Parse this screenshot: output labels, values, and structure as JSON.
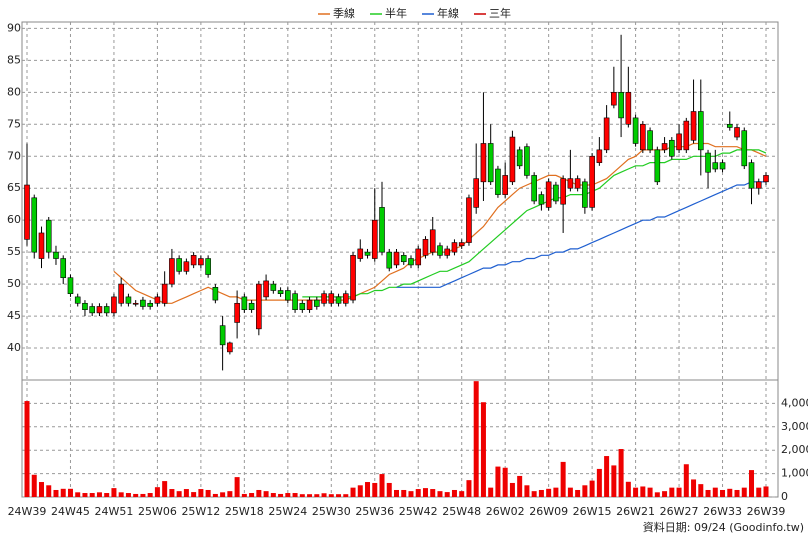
{
  "chart_data": {
    "type": "candlestick",
    "categories": [
      "24W39",
      null,
      null,
      null,
      null,
      null,
      "24W45",
      null,
      null,
      null,
      null,
      null,
      "24W51",
      null,
      null,
      null,
      null,
      null,
      "25W06",
      null,
      null,
      null,
      null,
      null,
      "25W12",
      null,
      null,
      null,
      null,
      null,
      "25W18",
      null,
      null,
      null,
      null,
      null,
      "25W24",
      null,
      null,
      null,
      null,
      null,
      "25W30",
      null,
      null,
      null,
      null,
      null,
      "25W36",
      null,
      null,
      null,
      null,
      null,
      "25W42",
      null,
      null,
      null,
      null,
      null,
      "25W48",
      null,
      null,
      null,
      null,
      null,
      "26W02",
      null,
      null,
      null,
      null,
      null,
      "26W09",
      null,
      null,
      null,
      null,
      null,
      "26W15",
      null,
      null,
      null,
      null,
      null,
      "26W21",
      null,
      null,
      null,
      null,
      null,
      "26W27",
      null,
      null,
      null,
      null,
      null,
      "26W33",
      null,
      null,
      null,
      null,
      null,
      "26W39"
    ],
    "open": [
      57,
      63.5,
      54,
      60,
      55,
      54,
      51,
      48,
      47,
      46.5,
      45.5,
      46.5,
      45.5,
      47,
      48,
      47,
      47.5,
      47,
      47,
      47,
      50,
      54,
      52,
      53,
      53,
      54,
      49.5,
      43.5,
      39.4,
      44,
      48,
      47,
      43,
      48,
      50,
      49,
      49,
      48.5,
      47,
      46,
      47.5,
      47,
      47,
      48,
      47,
      47.5,
      54,
      55,
      54,
      62,
      55,
      53,
      54.5,
      54,
      53,
      54.5,
      55,
      56,
      54.5,
      55,
      56,
      56.5,
      62,
      66,
      72,
      68,
      64,
      66,
      71,
      71.5,
      67,
      64,
      62,
      65.5,
      62.5,
      65,
      65,
      66,
      62,
      69,
      71,
      78,
      80,
      75,
      76,
      71,
      74,
      71,
      71,
      72.5,
      71,
      71,
      72.5,
      77,
      70.5,
      69,
      69,
      75,
      73,
      74,
      69,
      65,
      66
    ],
    "high": [
      72,
      64,
      59,
      60.5,
      56,
      54.5,
      51.5,
      48.5,
      47.5,
      47,
      47,
      47,
      48.5,
      51,
      48.5,
      47.5,
      48,
      47.5,
      48.5,
      52,
      55.5,
      54.5,
      54,
      55,
      54.5,
      54.5,
      50,
      45,
      41,
      49,
      48.5,
      47.5,
      50.5,
      51.5,
      50.5,
      49.5,
      49.5,
      49,
      47.5,
      48,
      48,
      49,
      49,
      48.5,
      49,
      55,
      57,
      55.5,
      65,
      66,
      55.5,
      55.5,
      55,
      54.5,
      56,
      57.5,
      60.5,
      56.5,
      56,
      57,
      57,
      64,
      72,
      80,
      75,
      68.5,
      69,
      74,
      71.5,
      72,
      67.5,
      64.5,
      66.5,
      66,
      67,
      71,
      67,
      66.5,
      70.5,
      73,
      78,
      84,
      89,
      84,
      76.5,
      75.5,
      74.5,
      71.5,
      73,
      73,
      75,
      76,
      82,
      82,
      71,
      71,
      69.5,
      77,
      75,
      74.5,
      69.5,
      66.5,
      67.5
    ],
    "low": [
      56,
      54,
      52.5,
      54,
      53,
      50,
      48,
      46.5,
      45,
      45,
      45,
      45,
      45,
      46.5,
      46.5,
      46.5,
      46,
      46,
      46.5,
      46.5,
      49.5,
      51.5,
      51.5,
      52.5,
      52.5,
      51,
      47,
      36.5,
      39,
      41.5,
      45.5,
      45.5,
      42,
      47.5,
      48.5,
      48,
      47,
      45.5,
      45.5,
      45.5,
      46,
      46.5,
      46.5,
      46.5,
      46.5,
      47,
      53.5,
      54,
      53.5,
      54.5,
      52,
      52.5,
      53,
      52.5,
      52.5,
      54,
      54.5,
      54,
      54,
      54.5,
      55.5,
      56,
      61,
      63,
      65.5,
      63.5,
      63.5,
      65.5,
      68,
      66.5,
      62.5,
      61.5,
      61.5,
      62.5,
      58,
      64.5,
      64.5,
      61,
      61.5,
      68.5,
      70.5,
      77.5,
      73,
      74.5,
      71.5,
      70.5,
      70.5,
      65.5,
      70.5,
      69.5,
      70.5,
      70.5,
      72,
      67,
      65,
      67.5,
      67.5,
      74,
      72.5,
      68,
      62.5,
      64,
      65.5
    ],
    "close": [
      65.5,
      55,
      58,
      55,
      54,
      51,
      48.5,
      47,
      46,
      45.5,
      46.5,
      45.5,
      48,
      50,
      47,
      47,
      46.5,
      46.5,
      48,
      50,
      54,
      52,
      53.5,
      54.5,
      54,
      51.5,
      47.5,
      40.5,
      40.8,
      47,
      46,
      46,
      50,
      50.5,
      49,
      48.5,
      47.5,
      46,
      46,
      47.5,
      46.5,
      48.5,
      48.5,
      47,
      48.5,
      54.5,
      55.5,
      54.5,
      60,
      55,
      52.5,
      55,
      53.5,
      53,
      55.5,
      57,
      58.5,
      54.5,
      55.5,
      56.5,
      56.5,
      63.5,
      66.5,
      72,
      66,
      64,
      67,
      73,
      68.5,
      67,
      63,
      62.5,
      66,
      63,
      66.5,
      66.5,
      66.5,
      62,
      70,
      71,
      76,
      80,
      76,
      80,
      72,
      75,
      71,
      66,
      72,
      70,
      73.5,
      75.5,
      77,
      71,
      67.5,
      68,
      68,
      74.5,
      74.5,
      68.5,
      65,
      66,
      67
    ],
    "up_color": "#ff0000",
    "down_color": "#00cc00",
    "ylim": [
      35,
      91
    ],
    "yticks": [
      40,
      45,
      50,
      55,
      60,
      65,
      70,
      75,
      80,
      85,
      90
    ],
    "grid": true,
    "series": [
      {
        "name": "季線",
        "color": "#e07020",
        "values": [
          null,
          null,
          null,
          null,
          null,
          null,
          null,
          null,
          null,
          null,
          null,
          null,
          52,
          51,
          50,
          49,
          48.5,
          48,
          47.5,
          47,
          47,
          47.5,
          48,
          48.5,
          49,
          49.5,
          49,
          48.5,
          48,
          48,
          47.5,
          47.5,
          47.5,
          47.5,
          47.5,
          47.5,
          47.5,
          47.5,
          47.5,
          47.5,
          47.5,
          47.5,
          47.5,
          47.5,
          47.5,
          48,
          48.5,
          49,
          49.5,
          50.5,
          51.5,
          52,
          52.5,
          53.5,
          54,
          54.5,
          55,
          55,
          55,
          55.5,
          56,
          57,
          58,
          59,
          60.5,
          62,
          63,
          64,
          65,
          65.5,
          66,
          66.5,
          67,
          67,
          66.5,
          66,
          65.5,
          65.5,
          65.5,
          66,
          66.5,
          67.5,
          68.5,
          69.5,
          70,
          71,
          71,
          71,
          71,
          71.5,
          71.5,
          71.5,
          72,
          72,
          72,
          71.5,
          71.5,
          71.5,
          71.5,
          71,
          71,
          70.5,
          70
        ]
      },
      {
        "name": "半年",
        "color": "#22cc22",
        "values": [
          null,
          null,
          null,
          null,
          null,
          null,
          null,
          null,
          null,
          null,
          null,
          null,
          null,
          null,
          null,
          null,
          null,
          null,
          null,
          null,
          null,
          null,
          null,
          null,
          null,
          null,
          null,
          null,
          null,
          null,
          null,
          null,
          null,
          null,
          null,
          null,
          null,
          null,
          48,
          48,
          48,
          48,
          48,
          48,
          48,
          48,
          48.5,
          48.5,
          49,
          49,
          49.5,
          49.5,
          50,
          50,
          50.5,
          51,
          51.5,
          52,
          52,
          52.5,
          53,
          53.5,
          54.5,
          55.5,
          56.5,
          57.5,
          58.5,
          59.5,
          60.5,
          61.5,
          62,
          62.5,
          63,
          63.5,
          63.5,
          64,
          64,
          64,
          64.5,
          65,
          66,
          67,
          67.5,
          68,
          68.5,
          68.5,
          69,
          69,
          69,
          69.5,
          69.5,
          69.5,
          70,
          70,
          70,
          70,
          70.5,
          70.5,
          71,
          71,
          71,
          71,
          70.5
        ]
      },
      {
        "name": "年線",
        "color": "#1f5fd0",
        "values": [
          null,
          null,
          null,
          null,
          null,
          null,
          null,
          null,
          null,
          null,
          null,
          null,
          null,
          null,
          null,
          null,
          null,
          null,
          null,
          null,
          null,
          null,
          null,
          null,
          null,
          null,
          null,
          null,
          null,
          null,
          null,
          null,
          null,
          null,
          null,
          null,
          null,
          null,
          null,
          null,
          null,
          null,
          null,
          null,
          null,
          null,
          null,
          null,
          null,
          null,
          null,
          49.5,
          49.5,
          49.5,
          49.5,
          49.5,
          49.5,
          49.5,
          50,
          50.5,
          51,
          51.5,
          52,
          52.5,
          52.5,
          53,
          53,
          53.5,
          53.5,
          54,
          54,
          54.5,
          54.5,
          55,
          55,
          55.5,
          55.5,
          56,
          56.5,
          57,
          57.5,
          58,
          58.5,
          59,
          59.5,
          60,
          60,
          60.5,
          60.5,
          61,
          61.5,
          62,
          62.5,
          63,
          63.5,
          64,
          64.5,
          65,
          65.5,
          65.5,
          66,
          66,
          66
        ]
      },
      {
        "name": "三年",
        "color": "#cc0000",
        "values": [
          null,
          null,
          null,
          null,
          null,
          null,
          null,
          null,
          null,
          null,
          null,
          null,
          null,
          null,
          null,
          null,
          null,
          null,
          null,
          null,
          null,
          null,
          null,
          null,
          null,
          null,
          null,
          null,
          null,
          null,
          null,
          null,
          null,
          null,
          null,
          null,
          null,
          null,
          null,
          null,
          null,
          null,
          null,
          null,
          null,
          null,
          null,
          null,
          null,
          null,
          null,
          null,
          null,
          null,
          null,
          null,
          null,
          null,
          null,
          null,
          null,
          null,
          null,
          null,
          null,
          null,
          null,
          null,
          null,
          null,
          null,
          null,
          null,
          null,
          null,
          null,
          null,
          null,
          null,
          null,
          null,
          null,
          null,
          null,
          null,
          null,
          null,
          null,
          null,
          null,
          null,
          null,
          null,
          null,
          null,
          null,
          null,
          null,
          null,
          null,
          null,
          null,
          null
        ]
      }
    ],
    "volume": {
      "color": "#ee0000",
      "values": [
        4100,
        950,
        640,
        500,
        300,
        350,
        350,
        200,
        170,
        170,
        200,
        170,
        380,
        200,
        170,
        130,
        130,
        170,
        420,
        680,
        340,
        250,
        340,
        210,
        340,
        300,
        130,
        200,
        250,
        850,
        130,
        170,
        300,
        250,
        170,
        130,
        170,
        170,
        120,
        120,
        120,
        160,
        120,
        120,
        120,
        400,
        500,
        640,
        600,
        980,
        600,
        300,
        300,
        250,
        340,
        380,
        340,
        250,
        210,
        300,
        250,
        720,
        4950,
        4050,
        400,
        1300,
        1250,
        600,
        900,
        500,
        250,
        300,
        350,
        400,
        1500,
        400,
        300,
        500,
        700,
        1200,
        1750,
        1350,
        2050,
        650,
        400,
        450,
        400,
        200,
        250,
        400,
        400,
        1400,
        750,
        550,
        300,
        400,
        300,
        350,
        300,
        400,
        1150,
        400,
        450
      ],
      "ylim": [
        0,
        5000
      ],
      "yticks": [
        0,
        {
          "value": 1000,
          "label": "1,000"
        },
        {
          "value": 2000,
          "label": "2,000"
        },
        {
          "value": 3000,
          "label": "3,000"
        },
        {
          "value": 4000,
          "label": "4,000"
        }
      ]
    },
    "footnote": "資料日期: 09/24  (Goodinfo.tw)"
  }
}
